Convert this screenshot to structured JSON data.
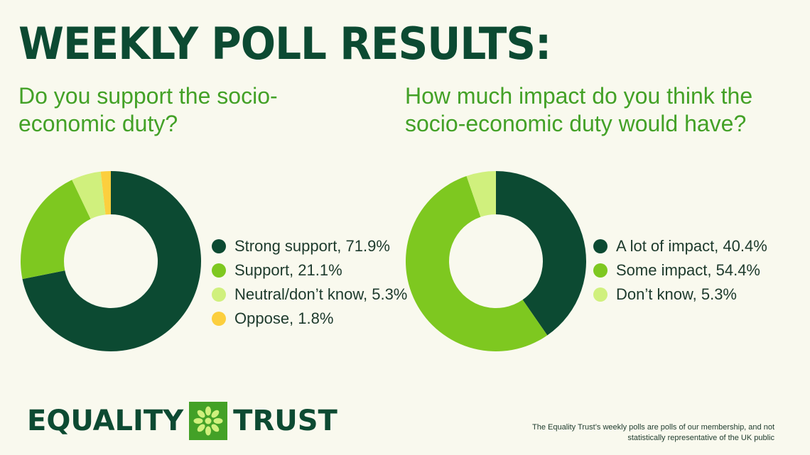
{
  "title": "WEEKLY POLL RESULTS:",
  "colors": {
    "background": "#f9f9ee",
    "dark_green": "#0c4a32",
    "green": "#7ec820",
    "light_green": "#d0f07d",
    "yellow": "#fccf3e",
    "question_green": "#43a127"
  },
  "chart_data": [
    {
      "type": "pie",
      "title": "Do you support the socio-economic duty?",
      "categories": [
        "Strong support",
        "Support",
        "Neutral/don’t know",
        "Oppose"
      ],
      "values": [
        71.9,
        21.1,
        5.3,
        1.8
      ],
      "colors": [
        "#0c4a32",
        "#7ec820",
        "#d0f07d",
        "#fccf3e"
      ],
      "legend_labels": [
        "Strong support, 71.9%",
        "Support, 21.1%",
        "Neutral/don’t know, 5.3%",
        "Oppose, 1.8%"
      ],
      "legend": "right"
    },
    {
      "type": "pie",
      "title": "How much impact do you think the socio-economic duty would have?",
      "categories": [
        "A lot of impact",
        "Some impact",
        "Don’t know"
      ],
      "values": [
        40.4,
        54.4,
        5.3
      ],
      "colors": [
        "#0c4a32",
        "#7ec820",
        "#d0f07d"
      ],
      "legend_labels": [
        "A lot of impact, 40.4%",
        "Some impact, 54.4%",
        "Don’t know, 5.3%"
      ],
      "legend": "right"
    }
  ],
  "logo": {
    "left_word": "EQUALITY",
    "right_word": "TRUST"
  },
  "footnote": "The Equality Trust’s weekly polls are polls of our membership, and not statistically representative of the UK public"
}
